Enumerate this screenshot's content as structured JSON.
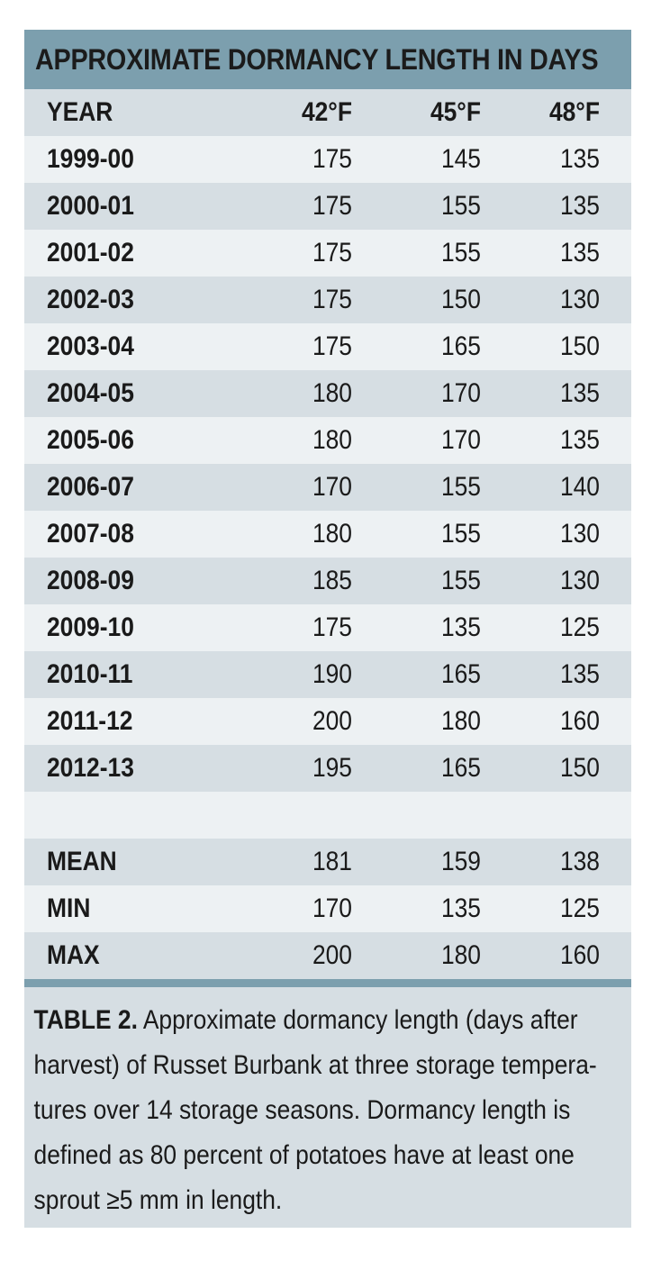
{
  "title": "APPROXIMATE DORMANCY LENGTH IN DAYS",
  "columns": [
    "YEAR",
    "42°F",
    "45°F",
    "48°F"
  ],
  "rows": [
    [
      "1999-00",
      "175",
      "145",
      "135"
    ],
    [
      "2000-01",
      "175",
      "155",
      "135"
    ],
    [
      "2001-02",
      "175",
      "155",
      "135"
    ],
    [
      "2002-03",
      "175",
      "150",
      "130"
    ],
    [
      "2003-04",
      "175",
      "165",
      "150"
    ],
    [
      "2004-05",
      "180",
      "170",
      "135"
    ],
    [
      "2005-06",
      "180",
      "170",
      "135"
    ],
    [
      "2006-07",
      "170",
      "155",
      "140"
    ],
    [
      "2007-08",
      "180",
      "155",
      "130"
    ],
    [
      "2008-09",
      "185",
      "155",
      "130"
    ],
    [
      "2009-10",
      "175",
      "135",
      "125"
    ],
    [
      "2010-11",
      "190",
      "165",
      "135"
    ],
    [
      "2011-12",
      "200",
      "180",
      "160"
    ],
    [
      "2012-13",
      "195",
      "165",
      "150"
    ]
  ],
  "summary": [
    [
      "MEAN",
      "181",
      "159",
      "138"
    ],
    [
      "MIN",
      "170",
      "135",
      "125"
    ],
    [
      "MAX",
      "200",
      "180",
      "160"
    ]
  ],
  "caption": {
    "label": "TABLE 2.",
    "lines": [
      " Approximate dormancy length (days after",
      "harvest) of Russet Burbank at three storage tempera-",
      "tures over 14 storage seasons. Dormancy length is",
      "defined as 80 percent of potatoes have at least one",
      "sprout ≥5 mm in length."
    ]
  },
  "colors": {
    "title_bar": "#7c9fae",
    "row_dark": "#d6dee3",
    "row_light": "#edf1f3"
  }
}
